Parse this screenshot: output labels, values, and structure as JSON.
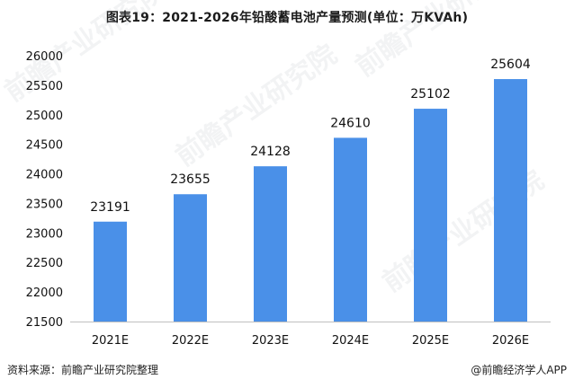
{
  "chart_data": {
    "type": "bar",
    "title": "图表19：2021-2026年铅酸蓄电池产量预测(单位：万KVAh)",
    "categories": [
      "2021E",
      "2022E",
      "2023E",
      "2024E",
      "2025E",
      "2026E"
    ],
    "values": [
      23191,
      23655,
      24128,
      24610,
      25102,
      25604
    ],
    "data_labels": [
      "23191",
      "23655",
      "24128",
      "24610",
      "25102",
      "25604"
    ],
    "y_ticks": [
      "21500",
      "22000",
      "22500",
      "23000",
      "23500",
      "24000",
      "24500",
      "25000",
      "25500",
      "26000"
    ],
    "ylim": [
      21500,
      26000
    ],
    "xlabel": "",
    "ylabel": "",
    "grid": false,
    "bar_color": "#4a90e8",
    "axis_color": "#bfbfbf"
  },
  "footer": {
    "source": "资料来源：前瞻产业研究院整理",
    "brand": "@前瞻经济学人APP"
  },
  "watermark": {
    "text": "前瞻产业研究院",
    "icon": "qianzhan-logo-icon"
  }
}
